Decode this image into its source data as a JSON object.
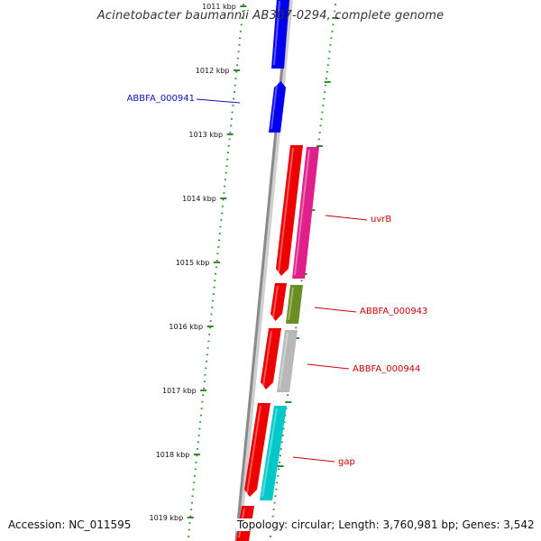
{
  "title": "Acinetobacter baumannii AB307-0294, complete genome",
  "footer": {
    "accession": "Accession: NC_011595",
    "summary": "Topology: circular; Length: 3,760,981 bp; Genes: 3,542"
  },
  "ruler_labels": [
    "1011 kbp",
    "1012 kbp",
    "1013 kbp",
    "1014 kbp",
    "1015 kbp",
    "1016 kbp",
    "1017 kbp",
    "1018 kbp",
    "1019 kbp"
  ],
  "feature_labels": [
    "ABBFA_000941",
    "uvrB",
    "ABBFA_000943",
    "ABBFA_000944",
    "gap"
  ],
  "colors": {
    "backbone": "#8a8a8a",
    "ruler_ticks": "#2e8b2e",
    "label_blue": "#1010c0",
    "label_red": "#cc0000",
    "forward_cds": "#0000ee",
    "reverse_cds": "#ee0000",
    "uvrB": "#e0208a",
    "ABBFA_000943": "#6b8e23",
    "ABBFA_000944": "#b8b8b8",
    "gap": "#00c8c8"
  }
}
